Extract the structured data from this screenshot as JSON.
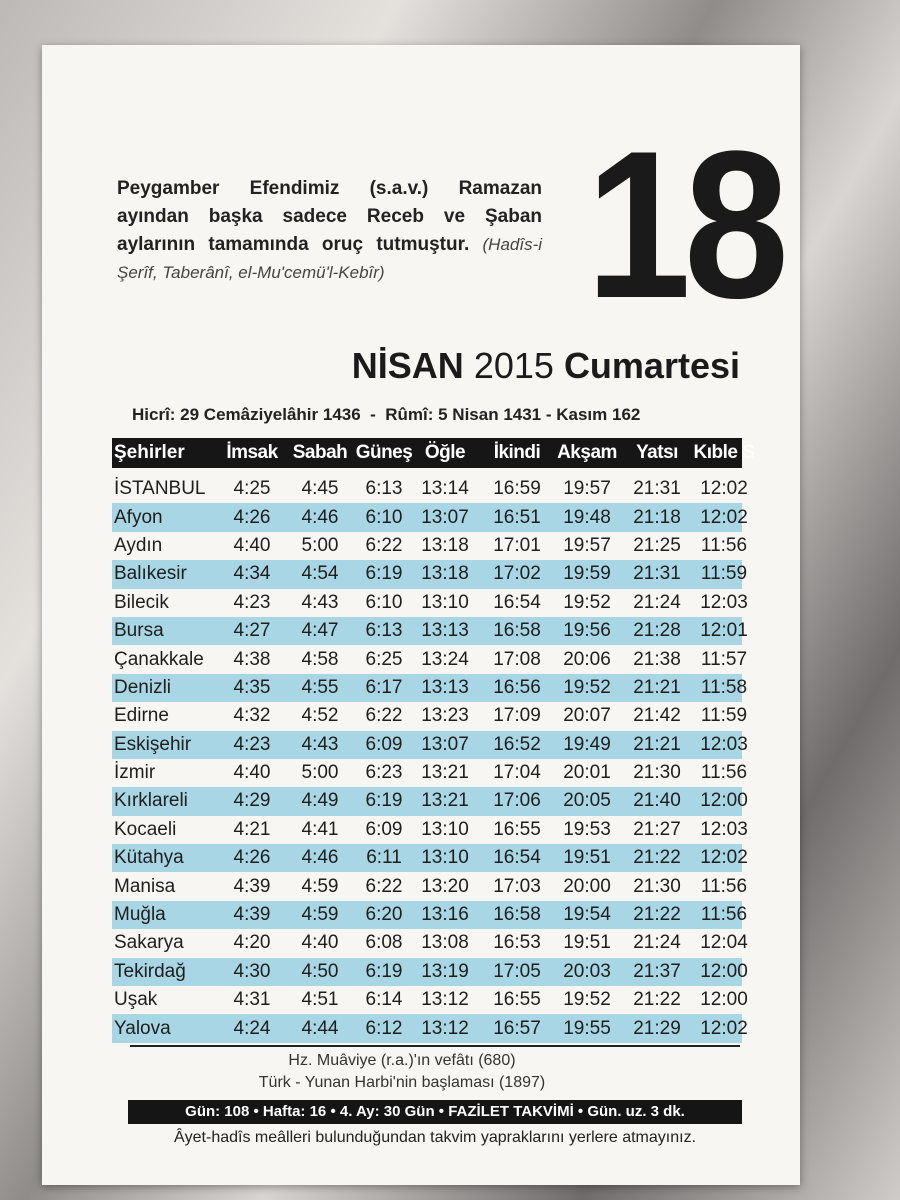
{
  "quote": {
    "text": "Peygamber Efendimiz (s.a.v.) Ramazan ayından başka sadece Receb ve Şaban aylarının tamamında oruç tutmuştur.",
    "source": "(Hadîs-i Şerîf, Taberânî, el-Mu'cemü'l-Kebîr)"
  },
  "date": {
    "day": 18,
    "month": "NİSAN",
    "year": "2015",
    "weekday": "Cumartesi"
  },
  "alt_dates": "Hicrî: 29 Cemâziyelâhir 1436  -  Rûmî: 5 Nisan 1431 - Kasım 162",
  "table": {
    "header": [
      "Şehirler",
      "İmsak",
      "Sabah",
      "Güneş",
      "Öğle",
      "İkindi",
      "Akşam",
      "Yatsı",
      "Kıble S"
    ],
    "rows": [
      [
        "İSTANBUL",
        "4:25",
        "4:45",
        "6:13",
        "13:14",
        "16:59",
        "19:57",
        "21:31",
        "12:02"
      ],
      [
        "Afyon",
        "4:26",
        "4:46",
        "6:10",
        "13:07",
        "16:51",
        "19:48",
        "21:18",
        "12:02"
      ],
      [
        "Aydın",
        "4:40",
        "5:00",
        "6:22",
        "13:18",
        "17:01",
        "19:57",
        "21:25",
        "11:56"
      ],
      [
        "Balıkesir",
        "4:34",
        "4:54",
        "6:19",
        "13:18",
        "17:02",
        "19:59",
        "21:31",
        "11:59"
      ],
      [
        "Bilecik",
        "4:23",
        "4:43",
        "6:10",
        "13:10",
        "16:54",
        "19:52",
        "21:24",
        "12:03"
      ],
      [
        "Bursa",
        "4:27",
        "4:47",
        "6:13",
        "13:13",
        "16:58",
        "19:56",
        "21:28",
        "12:01"
      ],
      [
        "Çanakkale",
        "4:38",
        "4:58",
        "6:25",
        "13:24",
        "17:08",
        "20:06",
        "21:38",
        "11:57"
      ],
      [
        "Denizli",
        "4:35",
        "4:55",
        "6:17",
        "13:13",
        "16:56",
        "19:52",
        "21:21",
        "11:58"
      ],
      [
        "Edirne",
        "4:32",
        "4:52",
        "6:22",
        "13:23",
        "17:09",
        "20:07",
        "21:42",
        "11:59"
      ],
      [
        "Eskişehir",
        "4:23",
        "4:43",
        "6:09",
        "13:07",
        "16:52",
        "19:49",
        "21:21",
        "12:03"
      ],
      [
        "İzmir",
        "4:40",
        "5:00",
        "6:23",
        "13:21",
        "17:04",
        "20:01",
        "21:30",
        "11:56"
      ],
      [
        "Kırklareli",
        "4:29",
        "4:49",
        "6:19",
        "13:21",
        "17:06",
        "20:05",
        "21:40",
        "12:00"
      ],
      [
        "Kocaeli",
        "4:21",
        "4:41",
        "6:09",
        "13:10",
        "16:55",
        "19:53",
        "21:27",
        "12:03"
      ],
      [
        "Kütahya",
        "4:26",
        "4:46",
        "6:11",
        "13:10",
        "16:54",
        "19:51",
        "21:22",
        "12:02"
      ],
      [
        "Manisa",
        "4:39",
        "4:59",
        "6:22",
        "13:20",
        "17:03",
        "20:00",
        "21:30",
        "11:56"
      ],
      [
        "Muğla",
        "4:39",
        "4:59",
        "6:20",
        "13:16",
        "16:58",
        "19:54",
        "21:22",
        "11:56"
      ],
      [
        "Sakarya",
        "4:20",
        "4:40",
        "6:08",
        "13:08",
        "16:53",
        "19:51",
        "21:24",
        "12:04"
      ],
      [
        "Tekirdağ",
        "4:30",
        "4:50",
        "6:19",
        "13:19",
        "17:05",
        "20:03",
        "21:37",
        "12:00"
      ],
      [
        "Uşak",
        "4:31",
        "4:51",
        "6:14",
        "13:12",
        "16:55",
        "19:52",
        "21:22",
        "12:00"
      ],
      [
        "Yalova",
        "4:24",
        "4:44",
        "6:12",
        "13:12",
        "16:57",
        "19:55",
        "21:29",
        "12:02"
      ]
    ]
  },
  "events": [
    "Hz. Muâviye (r.a.)'ın vefâtı (680)",
    "Türk - Yunan Harbi'nin başlaması (1897)"
  ],
  "info_bar": "Gün: 108 • Hafta: 16 • 4. Ay: 30 Gün • FAZİLET TAKVİMİ • Gün. uz. 3 dk.",
  "notice": "Âyet-hadîs meâlleri bulunduğundan takvim yapraklarını yerlere atmayınız."
}
